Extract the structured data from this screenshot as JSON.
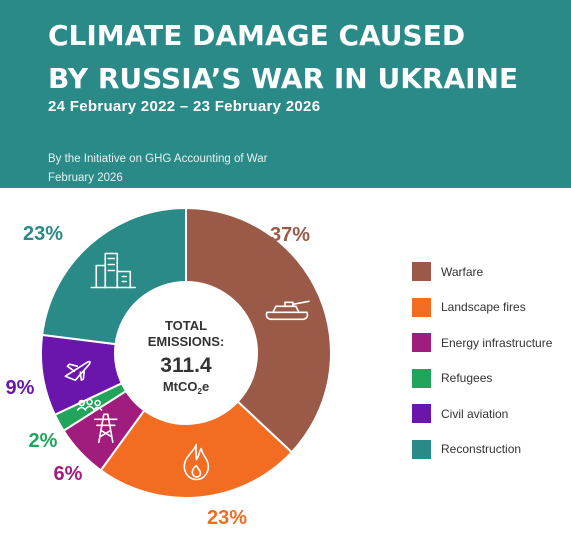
{
  "header": {
    "title_line1": "CLIMATE DAMAGE CAUSED",
    "title_line2": "BY RUSSIA’S WAR IN UKRAINE",
    "dates": "24 February 2022 – 23 February 2026",
    "byline_line1": "By the Initiative on GHG Accounting of War",
    "byline_line2": "February 2026",
    "background_color": "#2a8a87"
  },
  "center": {
    "line1": "TOTAL",
    "line2": "EMISSIONS:",
    "value": "311.4",
    "unit_main": "MtCO",
    "unit_sub": "2",
    "unit_end": "e"
  },
  "chart_data": {
    "type": "pie",
    "donut": true,
    "title": "CLIMATE DAMAGE CAUSED BY RUSSIA’S WAR IN UKRAINE",
    "total": 311.4,
    "unit": "MtCO2e",
    "categories": [
      "Warfare",
      "Landscape fires",
      "Energy infrastructure",
      "Refugees",
      "Civil aviation",
      "Reconstruction"
    ],
    "values": [
      37,
      23,
      6,
      2,
      9,
      23
    ],
    "labels": [
      "37%",
      "23%",
      "6%",
      "2%",
      "9%",
      "23%"
    ],
    "colors": [
      "#9a5a47",
      "#f26c22",
      "#a01c7d",
      "#21a55a",
      "#6a16ad",
      "#2a8a87"
    ],
    "icons": [
      "tank-icon",
      "fire-icon",
      "power-pylon-icon",
      "people-icon",
      "airplane-icon",
      "buildings-icon"
    ],
    "legend_position": "right"
  }
}
